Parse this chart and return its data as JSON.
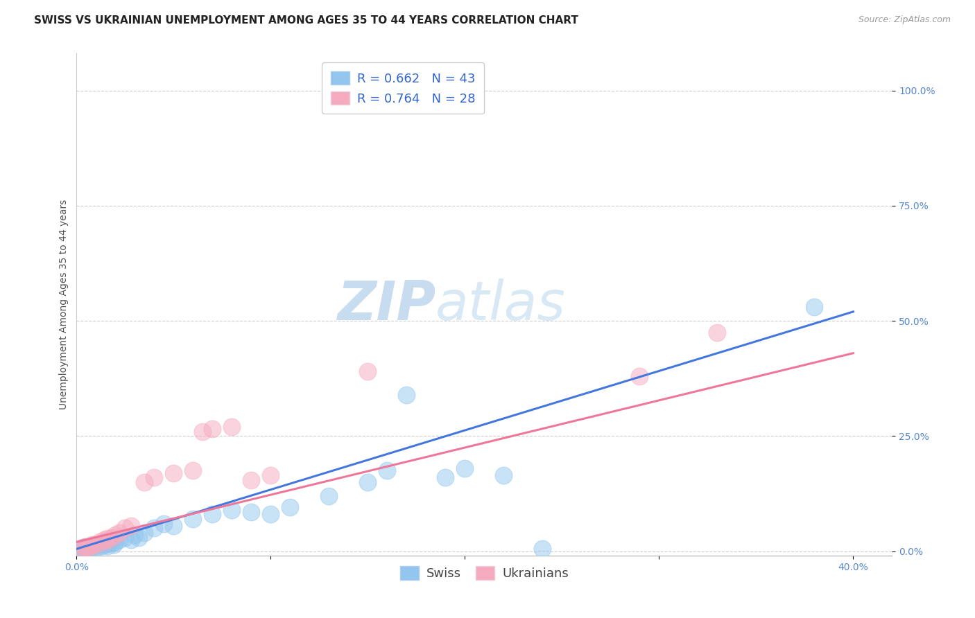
{
  "title": "SWISS VS UKRAINIAN UNEMPLOYMENT AMONG AGES 35 TO 44 YEARS CORRELATION CHART",
  "source": "Source: ZipAtlas.com",
  "ylabel": "Unemployment Among Ages 35 to 44 years",
  "ytick_labels": [
    "0.0%",
    "25.0%",
    "50.0%",
    "75.0%",
    "100.0%"
  ],
  "ytick_values": [
    0.0,
    0.25,
    0.5,
    0.75,
    1.0
  ],
  "xlim": [
    0.0,
    0.42
  ],
  "ylim": [
    -0.01,
    1.08
  ],
  "swiss_R": "0.662",
  "swiss_N": "43",
  "ukr_R": "0.764",
  "ukr_N": "28",
  "swiss_color": "#93C6EE",
  "ukr_color": "#F5AABF",
  "swiss_line_color": "#4477DD",
  "ukr_line_color": "#EE7799",
  "watermark_zip": "ZIP",
  "watermark_atlas": "atlas",
  "legend_label_swiss": "Swiss",
  "legend_label_ukr": "Ukrainians",
  "swiss_scatter_x": [
    0.002,
    0.003,
    0.004,
    0.005,
    0.006,
    0.007,
    0.008,
    0.009,
    0.01,
    0.011,
    0.012,
    0.013,
    0.014,
    0.015,
    0.016,
    0.017,
    0.018,
    0.019,
    0.02,
    0.022,
    0.025,
    0.028,
    0.03,
    0.032,
    0.035,
    0.04,
    0.045,
    0.05,
    0.06,
    0.07,
    0.08,
    0.09,
    0.1,
    0.11,
    0.13,
    0.15,
    0.16,
    0.17,
    0.19,
    0.2,
    0.22,
    0.24,
    0.38
  ],
  "swiss_scatter_y": [
    0.005,
    0.008,
    0.006,
    0.01,
    0.008,
    0.012,
    0.01,
    0.015,
    0.012,
    0.01,
    0.015,
    0.012,
    0.018,
    0.015,
    0.012,
    0.02,
    0.018,
    0.015,
    0.02,
    0.025,
    0.03,
    0.025,
    0.035,
    0.03,
    0.04,
    0.05,
    0.06,
    0.055,
    0.07,
    0.08,
    0.09,
    0.085,
    0.08,
    0.095,
    0.12,
    0.15,
    0.175,
    0.34,
    0.16,
    0.18,
    0.165,
    0.005,
    0.53
  ],
  "ukr_scatter_x": [
    0.002,
    0.004,
    0.005,
    0.006,
    0.007,
    0.008,
    0.01,
    0.012,
    0.014,
    0.015,
    0.016,
    0.018,
    0.02,
    0.022,
    0.025,
    0.028,
    0.035,
    0.04,
    0.05,
    0.06,
    0.065,
    0.07,
    0.08,
    0.09,
    0.1,
    0.15,
    0.29,
    0.33
  ],
  "ukr_scatter_y": [
    0.005,
    0.008,
    0.01,
    0.008,
    0.012,
    0.015,
    0.015,
    0.02,
    0.025,
    0.022,
    0.028,
    0.03,
    0.035,
    0.04,
    0.05,
    0.055,
    0.15,
    0.16,
    0.17,
    0.175,
    0.26,
    0.265,
    0.27,
    0.155,
    0.165,
    0.39,
    0.38,
    0.475
  ],
  "swiss_line_x0": 0.0,
  "swiss_line_y0": 0.005,
  "swiss_line_x1": 0.4,
  "swiss_line_y1": 0.52,
  "ukr_line_x0": 0.0,
  "ukr_line_y0": 0.02,
  "ukr_line_x1": 0.4,
  "ukr_line_y1": 0.43,
  "title_fontsize": 11,
  "source_fontsize": 9,
  "axis_label_fontsize": 10,
  "tick_fontsize": 10,
  "legend_fontsize": 13,
  "watermark_fontsize_zip": 56,
  "watermark_fontsize_atlas": 56,
  "background_color": "#ffffff"
}
